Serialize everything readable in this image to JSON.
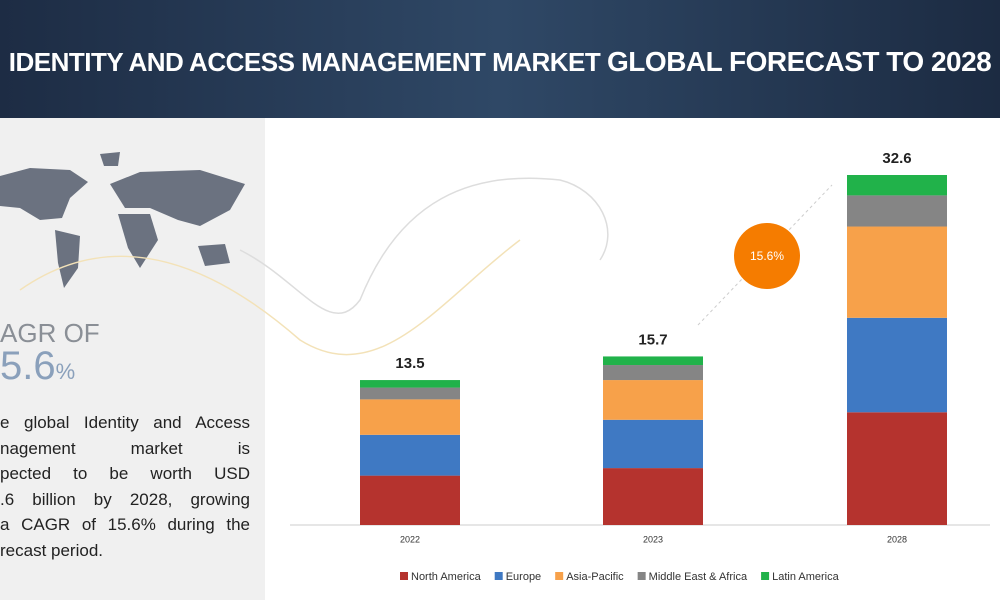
{
  "header": {
    "title": "IDENTITY AND ACCESS MANAGEMENT MARKET",
    "title_highlight": "GLOBAL FORECAST TO 2028"
  },
  "side_panel": {
    "cagr_label": "AGR OF",
    "cagr_value": "5.6",
    "cagr_unit": "%",
    "lines": [
      "e global Identity and Access",
      "nagement market is",
      "pected to be worth USD",
      ".6 billion by 2028, growing",
      "a CAGR of 15.6% during the",
      "recast period."
    ]
  },
  "chart_data": {
    "type": "stacked_bar",
    "categories": [
      "2022",
      "2023",
      "2028"
    ],
    "series": [
      {
        "name": "North America",
        "color": "#b5332e",
        "values": [
          4.6,
          5.3,
          10.5
        ]
      },
      {
        "name": "Europe",
        "color": "#3f79c3",
        "values": [
          3.8,
          4.5,
          8.8
        ]
      },
      {
        "name": "Asia-Pacific",
        "color": "#f7a14a",
        "values": [
          3.3,
          3.7,
          8.5
        ]
      },
      {
        "name": "Middle East & Africa",
        "color": "#858585",
        "values": [
          1.1,
          1.4,
          2.9
        ]
      },
      {
        "name": "Latin America",
        "color": "#21b24a",
        "values": [
          0.7,
          0.8,
          1.9
        ]
      }
    ],
    "totals": [
      13.5,
      15.7,
      32.6
    ],
    "annotation": "15.6%",
    "legend": "bottom"
  }
}
